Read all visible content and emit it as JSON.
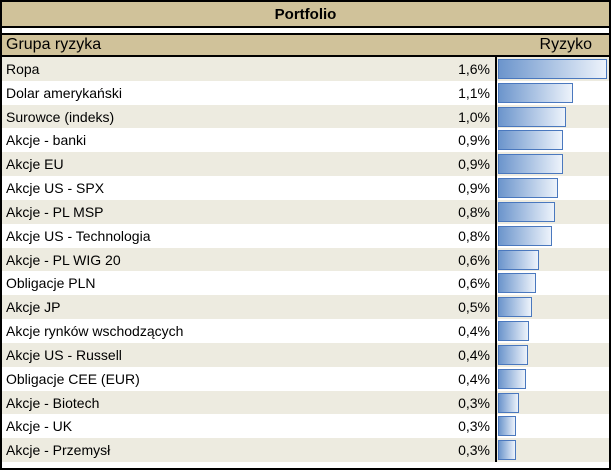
{
  "window": {
    "title": "Portfolio"
  },
  "table": {
    "columns": {
      "group": "Grupa ryzyka",
      "risk": "Ryzyko"
    },
    "rows": [
      {
        "label": "Ropa",
        "value": "1,6%",
        "bar_pct": 98.6
      },
      {
        "label": "Dolar amerykański",
        "value": "1,1%",
        "bar_pct": 67.9
      },
      {
        "label": "Surowce (indeks)",
        "value": "1,0%",
        "bar_pct": 61.0
      },
      {
        "label": "Akcje - banki",
        "value": "0,9%",
        "bar_pct": 58.6
      },
      {
        "label": "Akcje EU",
        "value": "0,9%",
        "bar_pct": 58.9
      },
      {
        "label": "Akcje US - SPX",
        "value": "0,9%",
        "bar_pct": 54.4
      },
      {
        "label": "Akcje - PL MSP",
        "value": "0,8%",
        "bar_pct": 51.7
      },
      {
        "label": "Akcje US - Technologia",
        "value": "0,8%",
        "bar_pct": 48.6
      },
      {
        "label": "Akcje - PL WIG 20",
        "value": "0,6%",
        "bar_pct": 36.9
      },
      {
        "label": "Obligacje PLN",
        "value": "0,6%",
        "bar_pct": 34.6
      },
      {
        "label": "Akcje JP",
        "value": "0,5%",
        "bar_pct": 31.0
      },
      {
        "label": "Akcje rynków wschodzących",
        "value": "0,4%",
        "bar_pct": 27.9
      },
      {
        "label": "Akcje US - Russell",
        "value": "0,4%",
        "bar_pct": 27.4
      },
      {
        "label": "Obligacje CEE (EUR)",
        "value": "0,4%",
        "bar_pct": 25.0
      },
      {
        "label": "Akcje - Biotech",
        "value": "0,3%",
        "bar_pct": 19.3
      },
      {
        "label": "Akcje - UK",
        "value": "0,3%",
        "bar_pct": 15.9
      },
      {
        "label": "Akcje - Przemysł",
        "value": "0,3%",
        "bar_pct": 15.9
      }
    ]
  },
  "colors": {
    "header_bg": "#D0C29A",
    "stripe_bg": "#EDEBE0",
    "row_bg": "#FFFFFF",
    "border": "#000000",
    "bar_border": "#4A78BE",
    "bar_fill_start": "#6C95CC",
    "bar_fill_end": "#EDF3FB"
  },
  "chart_data": {
    "type": "bar",
    "title": "Portfolio",
    "xlabel": "Grupa ryzyka",
    "ylabel": "Ryzyko",
    "orientation": "horizontal",
    "value_format": "percent (comma decimal)",
    "categories": [
      "Ropa",
      "Dolar amerykański",
      "Surowce (indeks)",
      "Akcje - banki",
      "Akcje EU",
      "Akcje US - SPX",
      "Akcje - PL MSP",
      "Akcje US - Technologia",
      "Akcje - PL WIG 20",
      "Obligacje PLN",
      "Akcje JP",
      "Akcje rynków wschodzących",
      "Akcje US - Russell",
      "Obligacje CEE (EUR)",
      "Akcje - Biotech",
      "Akcje - UK",
      "Akcje - Przemysł"
    ],
    "values": [
      1.6,
      1.1,
      1.0,
      0.9,
      0.9,
      0.9,
      0.8,
      0.8,
      0.6,
      0.6,
      0.5,
      0.4,
      0.4,
      0.4,
      0.3,
      0.3,
      0.3
    ],
    "xlim": [
      0,
      1.65
    ],
    "grid": false,
    "legend": false
  }
}
